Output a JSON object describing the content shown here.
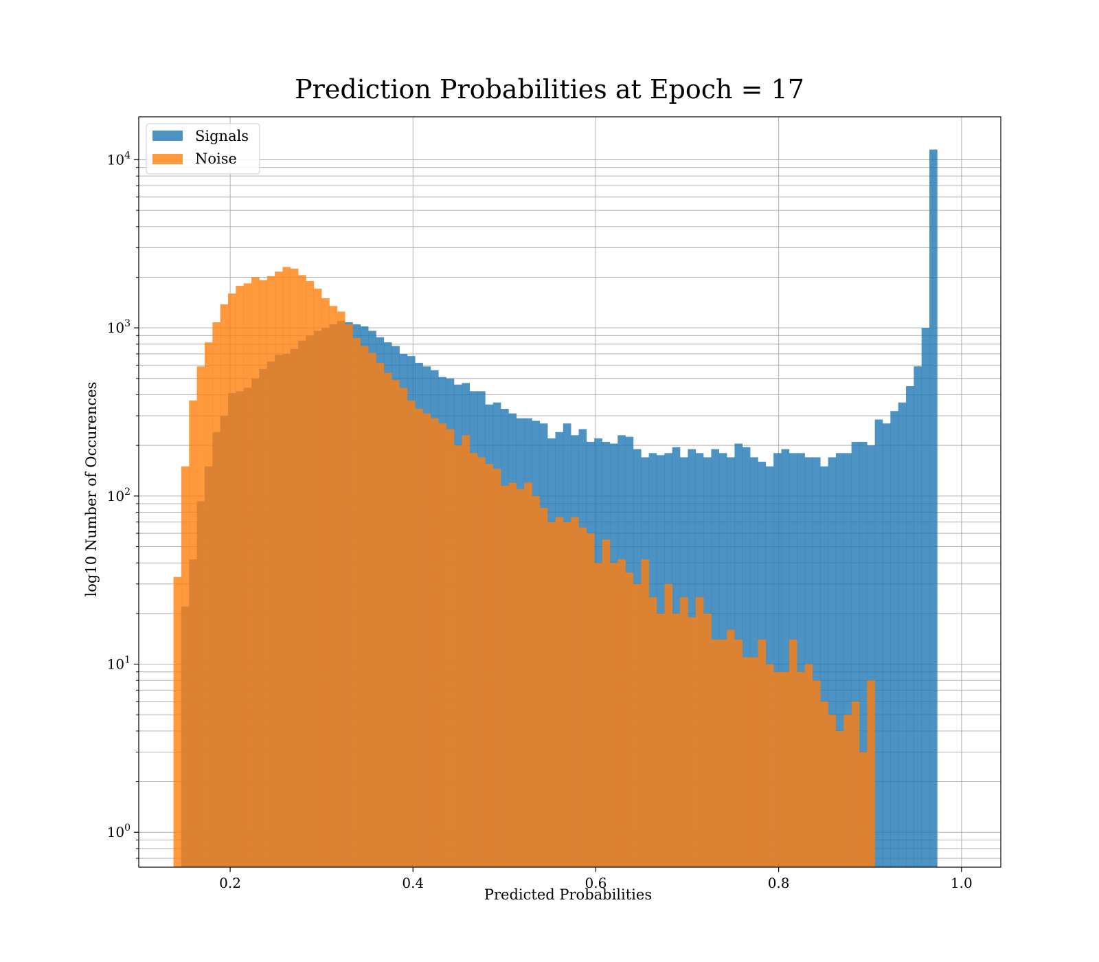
{
  "chart_data": {
    "type": "bar",
    "title": "Prediction Probabilities at Epoch = 17",
    "xlabel": "Predicted Probabilities",
    "ylabel": "log10 Number of Occurences",
    "yscale": "log",
    "xlim": [
      0.1,
      1.043
    ],
    "ylim": [
      0.62,
      18000
    ],
    "xticks": [
      {
        "value": 0.2,
        "label": "0.2"
      },
      {
        "value": 0.4,
        "label": "0.4"
      },
      {
        "value": 0.6,
        "label": "0.6"
      },
      {
        "value": 0.8,
        "label": "0.8"
      },
      {
        "value": 1.0,
        "label": "1.0"
      }
    ],
    "yticks": [
      {
        "value": 1,
        "base": "10",
        "exp": "0"
      },
      {
        "value": 10,
        "base": "10",
        "exp": "1"
      },
      {
        "value": 100,
        "base": "10",
        "exp": "2"
      },
      {
        "value": 1000,
        "base": "10",
        "exp": "3"
      },
      {
        "value": 10000,
        "base": "10",
        "exp": "4"
      }
    ],
    "grid": true,
    "legend_position": "upper-left",
    "series": [
      {
        "name": "Signals",
        "color": "#1f77b4",
        "opacity": 0.8,
        "bin_start": 0.1465,
        "bin_width": 0.008525,
        "values": [
          22,
          42,
          93,
          150,
          240,
          300,
          410,
          420,
          440,
          500,
          570,
          630,
          690,
          700,
          750,
          840,
          900,
          960,
          1000,
          1050,
          1100,
          1080,
          1050,
          1020,
          960,
          880,
          820,
          780,
          700,
          680,
          620,
          590,
          560,
          510,
          500,
          460,
          470,
          420,
          420,
          350,
          360,
          330,
          310,
          290,
          290,
          280,
          270,
          220,
          240,
          270,
          230,
          250,
          210,
          220,
          210,
          205,
          230,
          225,
          190,
          170,
          180,
          175,
          180,
          195,
          170,
          190,
          180,
          170,
          190,
          180,
          170,
          205,
          195,
          170,
          160,
          150,
          180,
          190,
          180,
          180,
          170,
          170,
          150,
          170,
          180,
          180,
          210,
          210,
          200,
          285,
          270,
          320,
          360,
          450,
          590,
          1000,
          11500
        ]
      },
      {
        "name": "Noise",
        "color": "#ff7f0e",
        "opacity": 0.8,
        "bin_start": 0.138,
        "bin_width": 0.008525,
        "values": [
          33,
          150,
          370,
          590,
          820,
          1080,
          1380,
          1600,
          1780,
          1840,
          2000,
          1920,
          2030,
          2160,
          2300,
          2250,
          2060,
          1900,
          1710,
          1500,
          1350,
          1250,
          1050,
          870,
          780,
          710,
          620,
          540,
          490,
          440,
          370,
          330,
          310,
          290,
          270,
          250,
          200,
          230,
          180,
          170,
          155,
          145,
          115,
          120,
          110,
          120,
          100,
          85,
          70,
          75,
          70,
          75,
          65,
          60,
          40,
          55,
          40,
          42,
          35,
          30,
          42,
          25,
          20,
          30,
          20,
          25,
          19,
          25,
          20,
          14,
          14,
          16,
          14,
          11,
          11,
          14,
          10,
          9,
          9,
          14,
          9,
          10,
          8,
          6,
          5,
          4,
          5,
          6,
          3,
          8
        ]
      }
    ]
  }
}
